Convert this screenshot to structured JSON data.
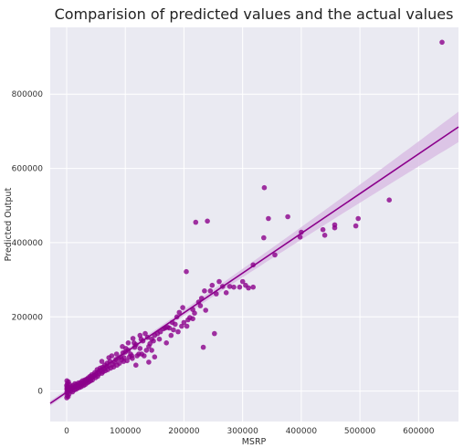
{
  "chart_data": {
    "type": "scatter",
    "title": "Comparision of predicted values and the actual values",
    "xlabel": "MSRP",
    "ylabel": "Predicted Output",
    "xlim": [
      -28000,
      668000
    ],
    "ylim": [
      -82000,
      980000
    ],
    "x_ticks": [
      0,
      100000,
      200000,
      300000,
      400000,
      500000,
      600000
    ],
    "x_tick_labels": [
      "0",
      "100000",
      "200000",
      "300000",
      "400000",
      "500000",
      "600000"
    ],
    "y_ticks": [
      0,
      200000,
      400000,
      600000,
      800000
    ],
    "y_tick_labels": [
      "0",
      "200000",
      "400000",
      "600000",
      "800000"
    ],
    "grid": true,
    "background": "#eaeaf2",
    "point_color": "#8b008b",
    "line_color": "#8b008b",
    "band_color": "#d7b8e2",
    "regression": {
      "slope": 1.07,
      "intercept": -3000,
      "x_range": [
        -28000,
        668000
      ]
    },
    "points": [
      [
        640000,
        940000
      ],
      [
        550000,
        515000
      ],
      [
        497000,
        465000
      ],
      [
        493000,
        445000
      ],
      [
        457000,
        448000
      ],
      [
        457000,
        440000
      ],
      [
        440000,
        420000
      ],
      [
        437000,
        435000
      ],
      [
        400000,
        428000
      ],
      [
        398000,
        415000
      ],
      [
        377000,
        470000
      ],
      [
        355000,
        367000
      ],
      [
        344000,
        465000
      ],
      [
        337000,
        548000
      ],
      [
        336000,
        413000
      ],
      [
        318000,
        340000
      ],
      [
        318000,
        280000
      ],
      [
        310000,
        278000
      ],
      [
        305000,
        285000
      ],
      [
        300000,
        295000
      ],
      [
        295000,
        280000
      ],
      [
        285000,
        280000
      ],
      [
        278000,
        282000
      ],
      [
        272000,
        265000
      ],
      [
        266000,
        282000
      ],
      [
        260000,
        295000
      ],
      [
        255000,
        262000
      ],
      [
        248000,
        285000
      ],
      [
        245000,
        270000
      ],
      [
        240000,
        458000
      ],
      [
        237000,
        218000
      ],
      [
        235000,
        270000
      ],
      [
        230000,
        250000
      ],
      [
        225000,
        240000
      ],
      [
        220000,
        455000
      ],
      [
        218000,
        210000
      ],
      [
        215000,
        220000
      ],
      [
        210000,
        198000
      ],
      [
        207000,
        192000
      ],
      [
        204000,
        322000
      ],
      [
        200000,
        185000
      ],
      [
        198000,
        225000
      ],
      [
        196000,
        175000
      ],
      [
        192000,
        212000
      ],
      [
        188000,
        200000
      ],
      [
        185000,
        180000
      ],
      [
        182000,
        165000
      ],
      [
        178000,
        150000
      ],
      [
        175000,
        170000
      ],
      [
        172000,
        172000
      ],
      [
        168000,
        170000
      ],
      [
        165000,
        168000
      ],
      [
        160000,
        160000
      ],
      [
        158000,
        140000
      ],
      [
        155000,
        155000
      ],
      [
        150000,
        150000
      ],
      [
        148000,
        135000
      ],
      [
        145000,
        140000
      ],
      [
        142000,
        128000
      ],
      [
        140000,
        120000
      ],
      [
        138000,
        145000
      ],
      [
        136000,
        110000
      ],
      [
        134000,
        155000
      ],
      [
        130000,
        135000
      ],
      [
        128000,
        100000
      ],
      [
        127000,
        140000
      ],
      [
        125000,
        115000
      ],
      [
        123000,
        100000
      ],
      [
        120000,
        95000
      ],
      [
        118000,
        125000
      ],
      [
        116000,
        118000
      ],
      [
        115000,
        130000
      ],
      [
        113000,
        142000
      ],
      [
        111000,
        95000
      ],
      [
        109000,
        100000
      ],
      [
        107000,
        92000
      ],
      [
        105000,
        110000
      ],
      [
        103000,
        82000
      ],
      [
        101000,
        115000
      ],
      [
        100000,
        105000
      ],
      [
        98000,
        90000
      ],
      [
        97000,
        80000
      ],
      [
        96000,
        103000
      ],
      [
        94000,
        85000
      ],
      [
        92000,
        92000
      ],
      [
        90000,
        75000
      ],
      [
        88000,
        88000
      ],
      [
        86000,
        70000
      ],
      [
        84000,
        85000
      ],
      [
        82000,
        78000
      ],
      [
        80000,
        65000
      ],
      [
        79000,
        72000
      ],
      [
        77000,
        95000
      ],
      [
        75000,
        62000
      ],
      [
        74000,
        80000
      ],
      [
        72000,
        68000
      ],
      [
        70000,
        58000
      ],
      [
        69000,
        75000
      ],
      [
        68000,
        66000
      ],
      [
        66000,
        55000
      ],
      [
        65000,
        70000
      ],
      [
        64000,
        60000
      ],
      [
        62000,
        52000
      ],
      [
        61000,
        64000
      ],
      [
        60000,
        48000
      ],
      [
        58000,
        56000
      ],
      [
        57000,
        62000
      ],
      [
        55000,
        46000
      ],
      [
        54000,
        52000
      ],
      [
        53000,
        40000
      ],
      [
        52000,
        58000
      ],
      [
        50000,
        45000
      ],
      [
        49000,
        36000
      ],
      [
        48000,
        50000
      ],
      [
        47000,
        42000
      ],
      [
        45000,
        38000
      ],
      [
        44000,
        30000
      ],
      [
        43000,
        44000
      ],
      [
        42000,
        35000
      ],
      [
        41000,
        28000
      ],
      [
        40000,
        40000
      ],
      [
        39000,
        33000
      ],
      [
        38000,
        25000
      ],
      [
        37000,
        36000
      ],
      [
        36000,
        30000
      ],
      [
        35000,
        22000
      ],
      [
        34000,
        32000
      ],
      [
        33000,
        27000
      ],
      [
        32000,
        18000
      ],
      [
        31000,
        30000
      ],
      [
        30000,
        25000
      ],
      [
        29000,
        15000
      ],
      [
        28000,
        22000
      ],
      [
        27000,
        28000
      ],
      [
        26000,
        18000
      ],
      [
        25000,
        12000
      ],
      [
        24000,
        24000
      ],
      [
        23000,
        20000
      ],
      [
        22000,
        10000
      ],
      [
        21000,
        16000
      ],
      [
        20000,
        22000
      ],
      [
        19000,
        8000
      ],
      [
        18000,
        14000
      ],
      [
        17000,
        18000
      ],
      [
        16000,
        5000
      ],
      [
        15000,
        12000
      ],
      [
        14000,
        20000
      ],
      [
        13000,
        3000
      ],
      [
        12000,
        10000
      ],
      [
        11000,
        15000
      ],
      [
        10000,
        -2000
      ],
      [
        9000,
        8000
      ],
      [
        8000,
        12000
      ],
      [
        7000,
        0
      ],
      [
        6000,
        5000
      ],
      [
        5000,
        18000
      ],
      [
        4000,
        -8000
      ],
      [
        3500,
        2000
      ],
      [
        3000,
        25000
      ],
      [
        2500,
        -15000
      ],
      [
        2000,
        8000
      ],
      [
        1800,
        14000
      ],
      [
        1500,
        -5000
      ],
      [
        1200,
        20000
      ],
      [
        1000,
        3000
      ],
      [
        800,
        -12000
      ],
      [
        600,
        10000
      ],
      [
        500,
        28000
      ],
      [
        400,
        -3000
      ],
      [
        300,
        6000
      ],
      [
        200,
        -18000
      ],
      [
        100,
        15000
      ],
      [
        60000,
        80000
      ],
      [
        72000,
        90000
      ],
      [
        85000,
        100000
      ],
      [
        95000,
        120000
      ],
      [
        105000,
        130000
      ],
      [
        112000,
        88000
      ],
      [
        125000,
        150000
      ],
      [
        132000,
        95000
      ],
      [
        145000,
        110000
      ],
      [
        170000,
        130000
      ],
      [
        180000,
        185000
      ],
      [
        190000,
        160000
      ],
      [
        205000,
        175000
      ],
      [
        215000,
        195000
      ],
      [
        228000,
        230000
      ],
      [
        252000,
        155000
      ],
      [
        233000,
        118000
      ],
      [
        150000,
        92000
      ],
      [
        140000,
        78000
      ],
      [
        118000,
        70000
      ]
    ]
  }
}
